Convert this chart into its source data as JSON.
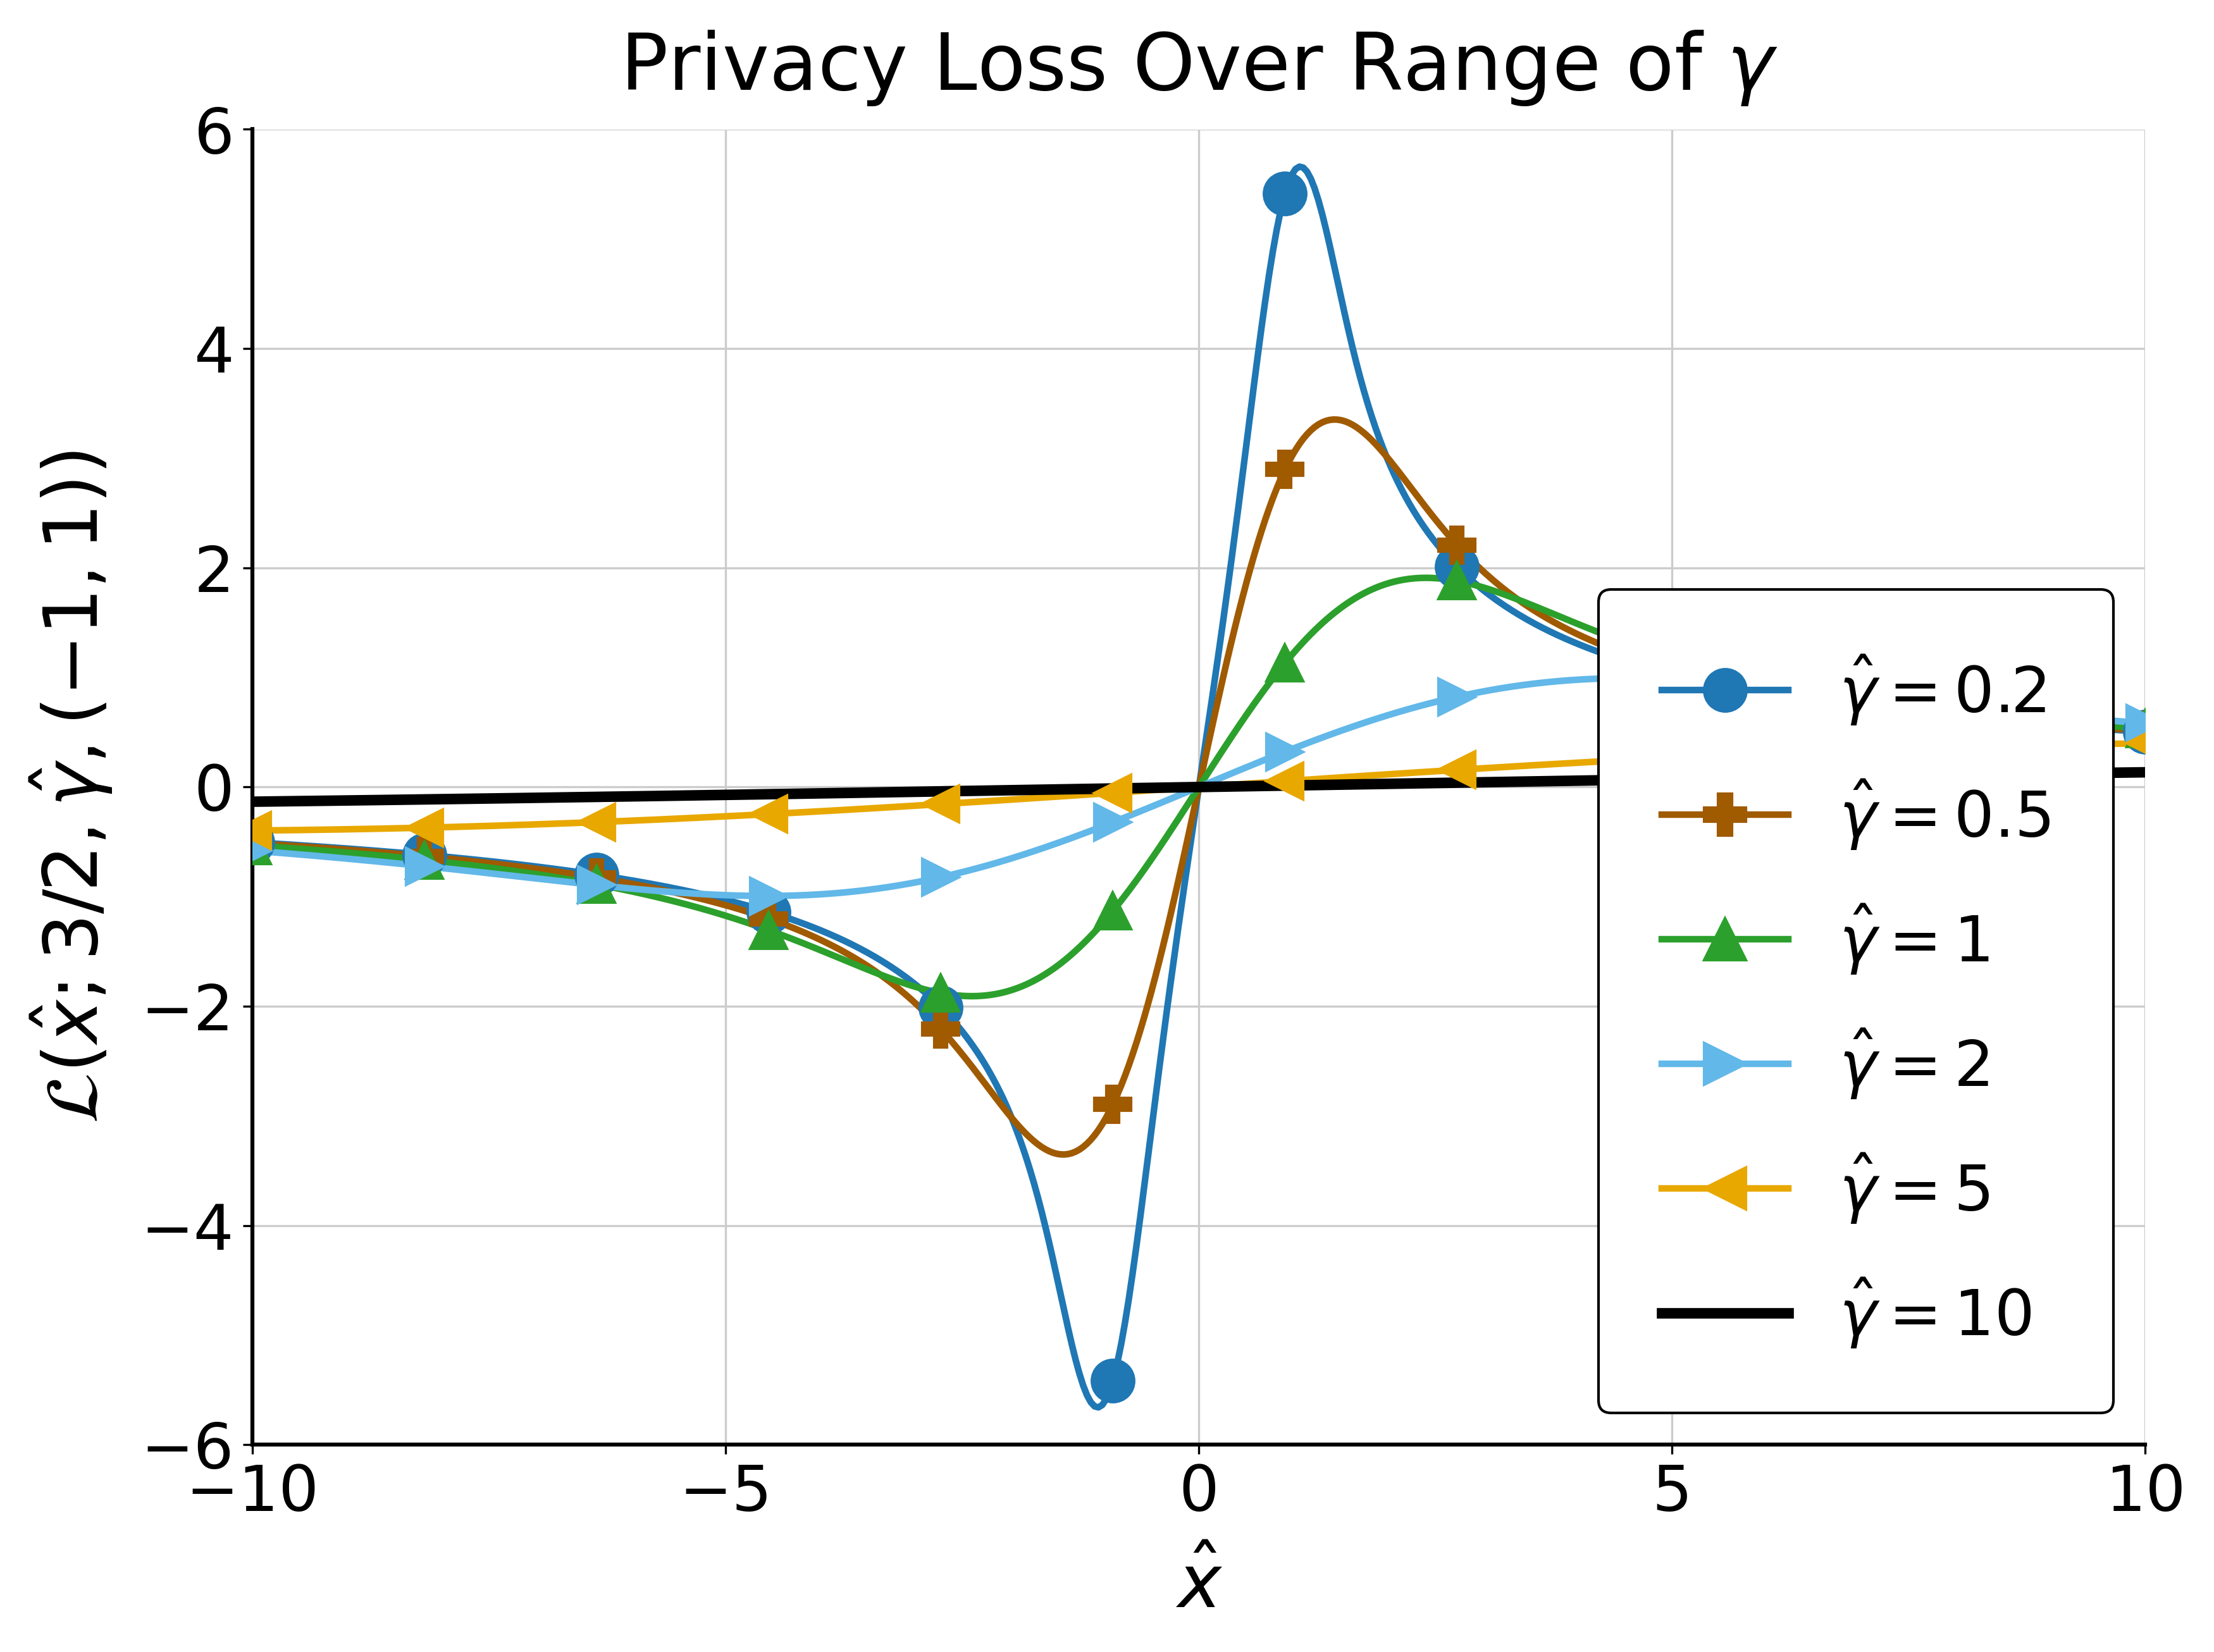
{
  "title": "Privacy Loss Over Range of $\\gamma$",
  "xlabel": "$\\hat{x}$",
  "ylabel": "$\\mathcal{L}(\\hat{x}; 3/2, \\hat{\\gamma}, (-1,1))$",
  "xlim": [
    -10,
    10
  ],
  "ylim": [
    -6,
    6
  ],
  "alpha_stable": 1.5,
  "mu1": 1.0,
  "mu2": -1.0,
  "gamma_values": [
    0.2,
    0.5,
    1.0,
    2.0,
    5.0,
    10.0
  ],
  "gamma_labels": [
    "$\\hat{\\gamma} = 0.2$",
    "$\\hat{\\gamma} = 0.5$",
    "$\\hat{\\gamma} = 1$",
    "$\\hat{\\gamma} = 2$",
    "$\\hat{\\gamma} = 5$",
    "$\\hat{\\gamma} = 10$"
  ],
  "colors": [
    "#1f77b4",
    "#a05a00",
    "#2ca02c",
    "#62b8e8",
    "#e8a800",
    "#000000"
  ],
  "markers": [
    "o",
    "P",
    "^",
    ">",
    "<",
    "none"
  ],
  "marker_sizes": [
    20,
    20,
    20,
    20,
    20,
    0
  ],
  "linewidths": [
    2.5,
    2.5,
    2.5,
    2.5,
    2.5,
    4.0
  ],
  "n_points": 500,
  "n_marker_points": 12,
  "background_color": "#ffffff",
  "grid_color": "#cccccc",
  "title_fontsize": 30,
  "label_fontsize": 28,
  "tick_fontsize": 24,
  "legend_fontsize": 24
}
